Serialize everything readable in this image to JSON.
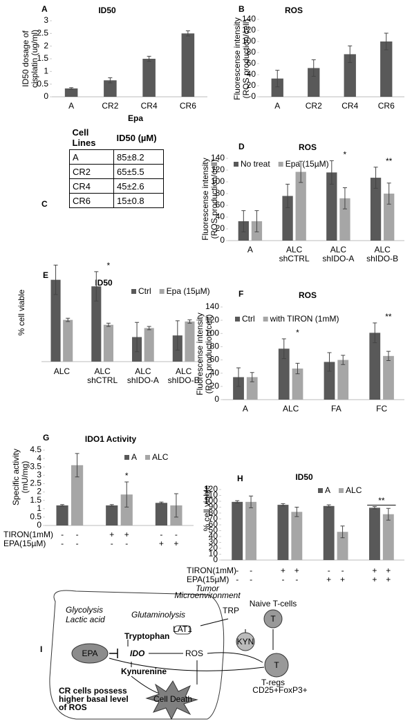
{
  "chart_data": [
    {
      "type": "bar",
      "label": "A",
      "title": "ID50",
      "ylabel": [
        "ID50 dosage of",
        "cisplatin (ug/ml)"
      ],
      "categories": [
        "A",
        "CR2",
        "CR4",
        "CR6"
      ],
      "values": [
        0.33,
        0.65,
        1.5,
        2.5
      ],
      "errors": [
        0.03,
        0.1,
        0.1,
        0.1
      ],
      "color": "#595959",
      "ylim": [
        0,
        3
      ],
      "yticks": [
        0,
        0.5,
        1,
        1.5,
        2,
        2.5,
        3
      ]
    },
    {
      "type": "bar",
      "label": "B",
      "title": "ROS",
      "ylabel": [
        "Fluorescense intensity",
        "(ROS production/cell)"
      ],
      "categories": [
        "A",
        "CR2",
        "CR4",
        "CR6"
      ],
      "values": [
        33,
        52,
        77,
        100
      ],
      "errors": [
        15,
        15,
        15,
        15
      ],
      "color": "#595959",
      "ylim": [
        0,
        140
      ],
      "yticks": [
        0,
        20,
        40,
        60,
        80,
        100,
        120,
        140
      ]
    },
    {
      "type": "bar",
      "label": "D",
      "title": "ROS",
      "ylabel": [
        "Fluorescense intensity",
        "(ROS production/cell)"
      ],
      "categories": [
        "A",
        "ALC shCTRL",
        "ALC shIDO-A",
        "ALC shIDO-B"
      ],
      "series": [
        {
          "name": "No treat",
          "color": "#595959",
          "values": [
            33,
            76,
            116,
            107
          ],
          "errors": [
            18,
            20,
            20,
            18
          ]
        },
        {
          "name": "Epa (15µM)",
          "color": "#a6a6a6",
          "values": [
            33,
            117,
            72,
            80
          ],
          "errors": [
            18,
            18,
            18,
            18
          ]
        }
      ],
      "annotations": [
        null,
        null,
        "*",
        "**"
      ],
      "ylim": [
        0,
        140
      ],
      "yticks": [
        0,
        20,
        40,
        60,
        80,
        100,
        120,
        140
      ]
    },
    {
      "type": "bar",
      "label": "E",
      "title": "ID50",
      "ylabel": [
        "% cell viable"
      ],
      "categories": [
        "ALC",
        "ALC shCTRL",
        "ALC shIDO-A",
        "ALC shIDO-B"
      ],
      "series": [
        {
          "name": "Ctrl",
          "color": "#595959",
          "values": [
            100,
            92,
            30,
            32
          ],
          "errors": [
            18,
            18,
            18,
            18
          ]
        },
        {
          "name": "Epa (15µM)",
          "color": "#a6a6a6",
          "values": [
            51,
            45,
            41,
            49
          ],
          "errors": [
            2,
            2,
            2,
            2
          ]
        }
      ],
      "annotations": [
        null,
        "*",
        null,
        null
      ],
      "ylim": [
        0,
        120
      ]
    },
    {
      "type": "bar",
      "label": "F",
      "title": "ROS",
      "ylabel": [
        "Fluorescense intensity",
        "(ROS production/cell)"
      ],
      "categories": [
        "A",
        "ALC",
        "FA",
        "FC"
      ],
      "series": [
        {
          "name": "Ctrl",
          "color": "#595959",
          "values": [
            34,
            77,
            57,
            101
          ],
          "errors": [
            14,
            15,
            14,
            15
          ]
        },
        {
          "name": "with TIRON (1mM)",
          "color": "#a6a6a6",
          "values": [
            34,
            47,
            60,
            66
          ],
          "errors": [
            7,
            8,
            7,
            7
          ]
        }
      ],
      "annotations": [
        null,
        "*",
        null,
        "**"
      ],
      "ylim": [
        0,
        140
      ],
      "yticks": [
        0,
        20,
        40,
        60,
        80,
        100,
        120,
        140
      ]
    },
    {
      "type": "bar",
      "label": "G",
      "title": "IDO1 Activity",
      "ylabel": [
        "Specific activity",
        "(mU/mg)"
      ],
      "series": [
        {
          "name": "A",
          "color": "#595959",
          "values": [
            1.2,
            1.2,
            1.35
          ],
          "errors": [
            0.05,
            0.05,
            0.05
          ]
        },
        {
          "name": "ALC",
          "color": "#a6a6a6",
          "values": [
            3.6,
            1.85,
            1.2
          ],
          "errors": [
            0.7,
            0.75,
            0.7
          ]
        }
      ],
      "annotations": [
        null,
        "*",
        null
      ],
      "conditions": [
        {
          "name": "TIRON(1mM)",
          "values": [
            "-",
            "-",
            "+",
            "+",
            "-",
            "-"
          ]
        },
        {
          "name": "EPA(15µM)",
          "values": [
            "-",
            "-",
            "-",
            "-",
            "+",
            "+"
          ]
        }
      ],
      "ylim": [
        0,
        4.5
      ],
      "yticks": [
        0,
        0.5,
        1,
        1.5,
        2,
        2.5,
        3,
        3.5,
        4,
        4.5
      ]
    },
    {
      "type": "bar",
      "label": "H",
      "title": "ID50",
      "ylabel": [
        "% cell viable"
      ],
      "series": [
        {
          "name": "A",
          "color": "#595959",
          "values": [
            99,
            94,
            92,
            89
          ],
          "errors": [
            2,
            2,
            2,
            2
          ]
        },
        {
          "name": "ALC",
          "color": "#a6a6a6",
          "values": [
            99,
            82,
            48,
            78
          ],
          "errors": [
            10,
            8,
            10,
            10
          ]
        }
      ],
      "annotations": [
        null,
        null,
        null,
        "**"
      ],
      "conditions": [
        {
          "name": "TIRON(1mM)",
          "values": [
            "-",
            "-",
            "+",
            "+",
            "-",
            "-",
            "+",
            "+"
          ]
        },
        {
          "name": "EPA(15µM)",
          "values": [
            "-",
            "-",
            "-",
            "-",
            "+",
            "+",
            "+",
            "+"
          ]
        }
      ],
      "ylim": [
        0,
        120
      ],
      "yticks": [
        0,
        10,
        20,
        30,
        40,
        50,
        60,
        70,
        80,
        90,
        100,
        110,
        120
      ]
    }
  ],
  "table": {
    "label": "C",
    "title": "Epa",
    "header": [
      "Cell Lines",
      "ID50 (µM)"
    ],
    "rows": [
      [
        "A",
        "85±8.2"
      ],
      [
        "CR2",
        "65±5.5"
      ],
      [
        "CR4",
        "45±2.6"
      ],
      [
        "CR6",
        "15±0.8"
      ]
    ]
  },
  "diagram": {
    "label": "I",
    "tumor": [
      "Tumor",
      "Microenvironment"
    ],
    "trp": "TRP",
    "lat1": "LAT1",
    "glycolysis": "Glycolysis",
    "lactic": "Lactic acid",
    "glutaminolysis": "Glutaminolysis",
    "tryptophan": "Tryptophan",
    "epa": "EPA",
    "ido": "IDO",
    "ros": "ROS",
    "kynurenine": "Kynurenine",
    "cell_death": "Cell Death",
    "cr_note": [
      "CR cells possess",
      "higher basal level",
      "of ROS"
    ],
    "naive": "Naive T-cells",
    "kyn": "KYN",
    "t1": "T",
    "t2": "T",
    "tregs": "T-regs",
    "markers": "CD25+FoxP3+"
  }
}
